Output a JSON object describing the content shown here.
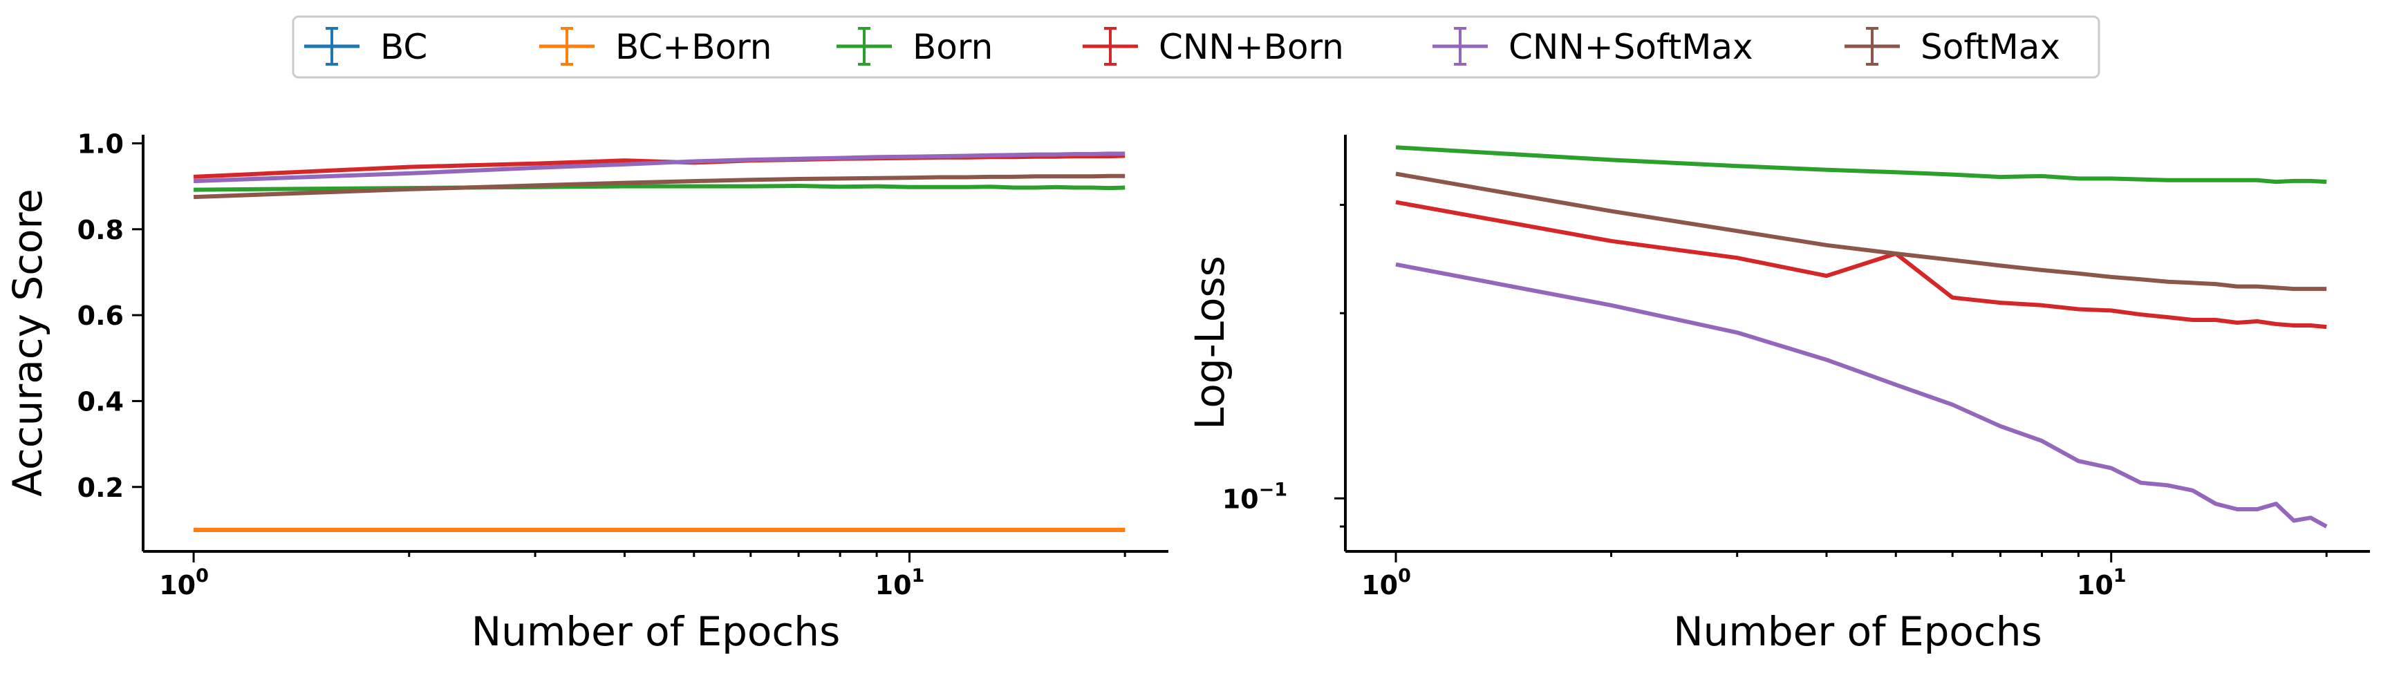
{
  "legend": {
    "placement": "top-center",
    "entries": [
      {
        "name": "BC",
        "color": "#1f77b4"
      },
      {
        "name": "BC+Born",
        "color": "#ff7f0e"
      },
      {
        "name": "Born",
        "color": "#2ca02c"
      },
      {
        "name": "CNN+Born",
        "color": "#d62728"
      },
      {
        "name": "CNN+SoftMax",
        "color": "#9467bd"
      },
      {
        "name": "SoftMax",
        "color": "#8c564b"
      }
    ]
  },
  "chart_data": [
    {
      "type": "line",
      "xlabel": "Number of Epochs",
      "ylabel": "Accuracy Score",
      "xscale": "log",
      "yscale": "linear",
      "xlim": [
        0.85,
        23
      ],
      "ylim": [
        0.05,
        1.02
      ],
      "xticks": [
        {
          "value": 1,
          "base": "10",
          "exp": "0"
        },
        {
          "value": 10,
          "base": "10",
          "exp": "1"
        }
      ],
      "yticks": [
        {
          "value": 0.2,
          "label": "0.2"
        },
        {
          "value": 0.4,
          "label": "0.4"
        },
        {
          "value": 0.6,
          "label": "0.6"
        },
        {
          "value": 0.8,
          "label": "0.8"
        },
        {
          "value": 1.0,
          "label": "1.0"
        }
      ],
      "grid": false,
      "x": [
        1,
        2,
        3,
        4,
        5,
        6,
        7,
        8,
        9,
        10,
        11,
        12,
        13,
        14,
        15,
        16,
        17,
        18,
        19,
        20
      ],
      "series": [
        {
          "name": "BC",
          "color": "#1f77b4",
          "values": [
            0.1,
            0.1,
            0.1,
            0.1,
            0.1,
            0.1,
            0.1,
            0.1,
            0.1,
            0.1,
            0.1,
            0.1,
            0.1,
            0.1,
            0.1,
            0.1,
            0.1,
            0.1,
            0.1,
            0.1
          ]
        },
        {
          "name": "BC+Born",
          "color": "#ff7f0e",
          "values": [
            0.1,
            0.1,
            0.1,
            0.1,
            0.1,
            0.1,
            0.1,
            0.1,
            0.1,
            0.1,
            0.1,
            0.1,
            0.1,
            0.1,
            0.1,
            0.1,
            0.1,
            0.1,
            0.1,
            0.1
          ]
        },
        {
          "name": "Born",
          "color": "#2ca02c",
          "values": [
            0.892,
            0.896,
            0.898,
            0.9,
            0.9,
            0.9,
            0.901,
            0.899,
            0.9,
            0.898,
            0.898,
            0.898,
            0.899,
            0.897,
            0.897,
            0.898,
            0.897,
            0.897,
            0.896,
            0.897
          ]
        },
        {
          "name": "CNN+Born",
          "color": "#d62728",
          "values": [
            0.922,
            0.945,
            0.953,
            0.96,
            0.955,
            0.96,
            0.962,
            0.964,
            0.965,
            0.966,
            0.967,
            0.967,
            0.968,
            0.968,
            0.969,
            0.969,
            0.97,
            0.97,
            0.97,
            0.971
          ]
        },
        {
          "name": "CNN+SoftMax",
          "color": "#9467bd",
          "values": [
            0.912,
            0.93,
            0.943,
            0.951,
            0.958,
            0.962,
            0.964,
            0.966,
            0.968,
            0.969,
            0.97,
            0.971,
            0.972,
            0.973,
            0.974,
            0.974,
            0.975,
            0.975,
            0.976,
            0.976
          ]
        },
        {
          "name": "SoftMax",
          "color": "#8c564b",
          "values": [
            0.875,
            0.893,
            0.902,
            0.908,
            0.912,
            0.915,
            0.917,
            0.918,
            0.919,
            0.92,
            0.921,
            0.921,
            0.922,
            0.922,
            0.923,
            0.923,
            0.923,
            0.923,
            0.924,
            0.924
          ]
        }
      ]
    },
    {
      "type": "line",
      "xlabel": "Number of Epochs",
      "ylabel": "Log-Loss",
      "xscale": "log",
      "yscale": "log",
      "xlim": [
        0.85,
        23
      ],
      "ylim": [
        0.082,
        0.39
      ],
      "xticks": [
        {
          "value": 1,
          "base": "10",
          "exp": "0"
        },
        {
          "value": 10,
          "base": "10",
          "exp": "1"
        }
      ],
      "yticks": [
        {
          "value": 0.1,
          "base": "10",
          "exp": "−1"
        }
      ],
      "grid": false,
      "x": [
        1,
        2,
        3,
        4,
        5,
        6,
        7,
        8,
        9,
        10,
        11,
        12,
        13,
        14,
        15,
        16,
        17,
        18,
        19,
        20
      ],
      "series": [
        {
          "name": "Born",
          "color": "#2ca02c",
          "values": [
            0.372,
            0.355,
            0.347,
            0.342,
            0.339,
            0.336,
            0.333,
            0.334,
            0.331,
            0.331,
            0.33,
            0.329,
            0.329,
            0.329,
            0.329,
            0.329,
            0.327,
            0.328,
            0.328,
            0.327
          ]
        },
        {
          "name": "CNN+Born",
          "color": "#d62728",
          "values": [
            0.303,
            0.262,
            0.246,
            0.23,
            0.25,
            0.212,
            0.208,
            0.206,
            0.203,
            0.202,
            0.199,
            0.197,
            0.195,
            0.195,
            0.193,
            0.194,
            0.192,
            0.191,
            0.191,
            0.19
          ]
        },
        {
          "name": "CNN+SoftMax",
          "color": "#9467bd",
          "values": [
            0.24,
            0.206,
            0.186,
            0.168,
            0.153,
            0.142,
            0.131,
            0.124,
            0.115,
            0.112,
            0.106,
            0.105,
            0.103,
            0.098,
            0.096,
            0.096,
            0.098,
            0.092,
            0.093,
            0.09
          ]
        },
        {
          "name": "SoftMax",
          "color": "#8c564b",
          "values": [
            0.337,
            0.293,
            0.272,
            0.258,
            0.25,
            0.244,
            0.239,
            0.235,
            0.232,
            0.229,
            0.227,
            0.225,
            0.224,
            0.223,
            0.221,
            0.221,
            0.22,
            0.219,
            0.219,
            0.219
          ]
        }
      ]
    }
  ]
}
